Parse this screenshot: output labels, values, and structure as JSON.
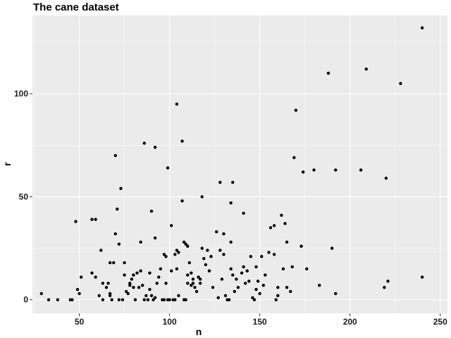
{
  "chart_data": {
    "type": "scatter",
    "title": "The cane dataset",
    "xlabel": "n",
    "ylabel": "r",
    "xlim": [
      24,
      254
    ],
    "ylim": [
      -6.6,
      138
    ],
    "x_ticks": [
      50,
      100,
      150,
      200,
      250
    ],
    "y_ticks": [
      0,
      50,
      100
    ],
    "x_tick_labels": [
      "50",
      "100",
      "150",
      "200",
      "250"
    ],
    "y_tick_labels": [
      "0",
      "50",
      "100"
    ],
    "grid": true,
    "legend": "none",
    "background": "#ebebeb",
    "grid_major_color": "#ffffff",
    "point_color": "#000000",
    "points": [
      [
        29,
        3
      ],
      [
        33,
        0
      ],
      [
        38,
        0
      ],
      [
        45,
        0
      ],
      [
        46,
        0
      ],
      [
        48,
        38
      ],
      [
        49,
        5
      ],
      [
        50,
        3
      ],
      [
        51,
        11
      ],
      [
        57,
        39
      ],
      [
        57,
        13
      ],
      [
        59,
        39
      ],
      [
        59,
        11
      ],
      [
        61,
        2
      ],
      [
        62,
        24
      ],
      [
        63,
        8
      ],
      [
        63,
        0
      ],
      [
        65,
        6
      ],
      [
        66,
        8
      ],
      [
        67,
        18
      ],
      [
        67,
        3
      ],
      [
        67,
        2
      ],
      [
        68,
        0
      ],
      [
        69,
        18
      ],
      [
        70,
        70
      ],
      [
        70,
        32
      ],
      [
        71,
        44
      ],
      [
        72,
        27
      ],
      [
        72,
        0
      ],
      [
        73,
        54
      ],
      [
        74,
        0
      ],
      [
        75,
        18
      ],
      [
        75,
        12
      ],
      [
        76,
        4
      ],
      [
        77,
        3
      ],
      [
        78,
        8
      ],
      [
        78,
        7
      ],
      [
        79,
        10
      ],
      [
        80,
        6
      ],
      [
        80,
        12
      ],
      [
        81,
        0
      ],
      [
        82,
        13
      ],
      [
        83,
        6
      ],
      [
        84,
        28
      ],
      [
        84,
        14
      ],
      [
        85,
        7
      ],
      [
        86,
        76
      ],
      [
        86,
        0
      ],
      [
        87,
        2
      ],
      [
        88,
        0
      ],
      [
        89,
        13
      ],
      [
        89,
        5
      ],
      [
        90,
        43
      ],
      [
        90,
        2
      ],
      [
        91,
        0
      ],
      [
        92,
        74
      ],
      [
        92,
        30
      ],
      [
        92,
        1
      ],
      [
        93,
        8
      ],
      [
        94,
        11
      ],
      [
        95,
        15
      ],
      [
        96,
        0
      ],
      [
        97,
        22
      ],
      [
        97,
        0
      ],
      [
        98,
        21
      ],
      [
        98,
        8
      ],
      [
        99,
        64
      ],
      [
        99,
        0
      ],
      [
        100,
        0
      ],
      [
        101,
        36
      ],
      [
        101,
        14
      ],
      [
        102,
        0
      ],
      [
        103,
        22
      ],
      [
        103,
        0
      ],
      [
        104,
        95
      ],
      [
        104,
        24
      ],
      [
        104,
        15
      ],
      [
        105,
        23
      ],
      [
        105,
        2
      ],
      [
        107,
        77
      ],
      [
        107,
        48
      ],
      [
        108,
        28
      ],
      [
        108,
        0
      ],
      [
        109,
        27
      ],
      [
        109,
        0
      ],
      [
        110,
        26
      ],
      [
        110,
        12
      ],
      [
        110,
        8
      ],
      [
        111,
        18
      ],
      [
        112,
        13
      ],
      [
        112,
        7
      ],
      [
        113,
        10
      ],
      [
        113,
        8
      ],
      [
        114,
        6
      ],
      [
        115,
        4
      ],
      [
        116,
        11
      ],
      [
        117,
        8
      ],
      [
        117,
        10
      ],
      [
        118,
        50
      ],
      [
        118,
        25
      ],
      [
        119,
        20
      ],
      [
        120,
        17
      ],
      [
        121,
        24
      ],
      [
        122,
        14
      ],
      [
        123,
        21
      ],
      [
        124,
        6
      ],
      [
        126,
        33
      ],
      [
        127,
        1
      ],
      [
        128,
        57
      ],
      [
        128,
        24
      ],
      [
        129,
        10
      ],
      [
        130,
        32
      ],
      [
        130,
        22
      ],
      [
        131,
        2
      ],
      [
        132,
        0
      ],
      [
        133,
        0
      ],
      [
        134,
        15
      ],
      [
        134,
        47
      ],
      [
        134,
        28
      ],
      [
        135,
        57
      ],
      [
        135,
        12
      ],
      [
        136,
        4
      ],
      [
        137,
        10
      ],
      [
        138,
        6
      ],
      [
        140,
        13
      ],
      [
        141,
        42
      ],
      [
        141,
        16
      ],
      [
        142,
        8
      ],
      [
        143,
        14
      ],
      [
        144,
        9
      ],
      [
        145,
        21
      ],
      [
        146,
        1
      ],
      [
        147,
        0
      ],
      [
        148,
        16
      ],
      [
        148,
        5
      ],
      [
        149,
        9
      ],
      [
        150,
        3
      ],
      [
        151,
        21
      ],
      [
        152,
        7
      ],
      [
        153,
        12
      ],
      [
        155,
        23
      ],
      [
        156,
        35
      ],
      [
        158,
        36
      ],
      [
        158,
        22
      ],
      [
        159,
        0
      ],
      [
        160,
        6
      ],
      [
        160,
        2
      ],
      [
        162,
        41
      ],
      [
        163,
        15
      ],
      [
        164,
        37
      ],
      [
        165,
        6
      ],
      [
        165,
        28
      ],
      [
        167,
        4
      ],
      [
        168,
        16
      ],
      [
        169,
        69
      ],
      [
        170,
        92
      ],
      [
        173,
        26
      ],
      [
        174,
        62
      ],
      [
        176,
        15
      ],
      [
        180,
        63
      ],
      [
        183,
        7
      ],
      [
        188,
        110
      ],
      [
        190,
        25
      ],
      [
        192,
        63
      ],
      [
        192,
        3
      ],
      [
        206,
        63
      ],
      [
        209,
        112
      ],
      [
        219,
        6
      ],
      [
        220,
        59
      ],
      [
        221,
        9
      ],
      [
        228,
        105
      ],
      [
        240,
        132
      ],
      [
        240,
        11
      ]
    ]
  }
}
